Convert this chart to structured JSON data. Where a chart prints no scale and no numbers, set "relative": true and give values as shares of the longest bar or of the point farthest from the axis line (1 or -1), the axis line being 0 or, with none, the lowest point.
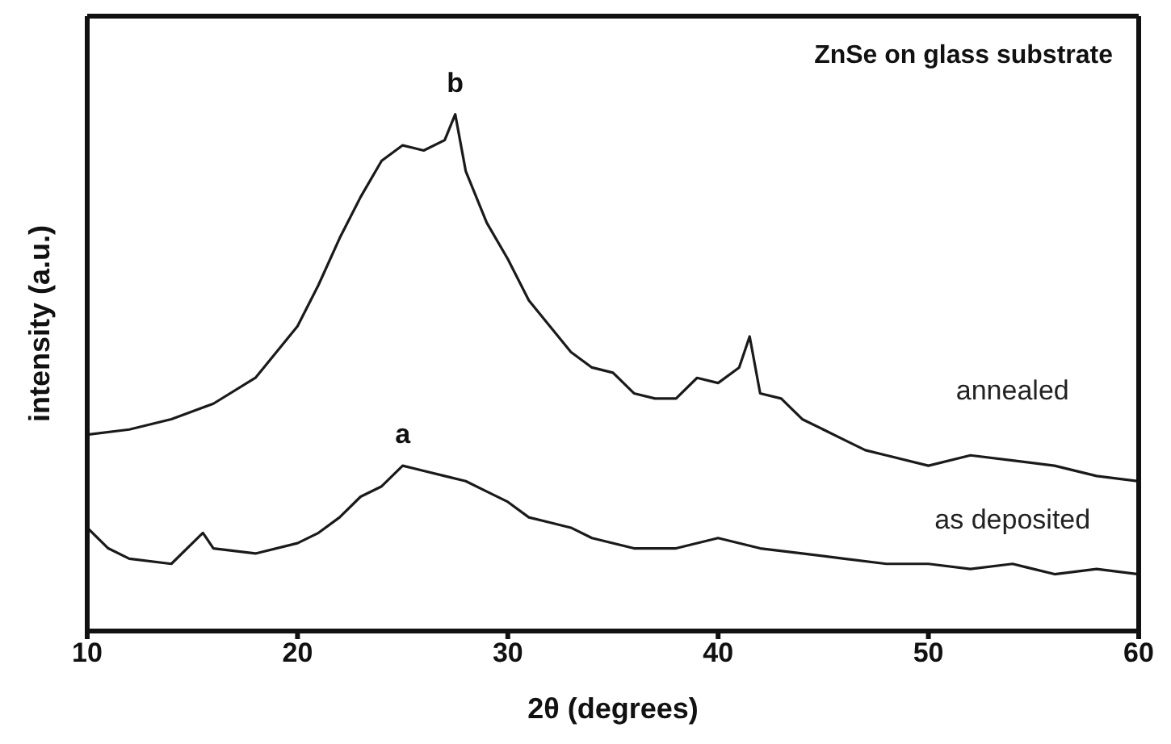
{
  "chart_data": {
    "type": "line",
    "relative": true,
    "xlabel": "2θ (degrees)",
    "ylabel": "intensity (a.u.)",
    "xlim": [
      10,
      60
    ],
    "xticks": [
      10,
      20,
      30,
      40,
      50,
      60
    ],
    "tick_labels": "x",
    "marker": "none",
    "line_style": "solid",
    "series": [
      {
        "name": "annealed",
        "color": "#1a1a1a",
        "x": [
          10,
          12,
          14,
          16,
          18,
          19,
          20,
          21,
          22,
          23,
          24,
          25,
          26,
          27,
          27.5,
          28,
          29,
          30,
          31,
          32,
          33,
          34,
          35,
          36,
          37,
          38,
          39,
          40,
          41,
          41.5,
          42,
          43,
          44,
          45,
          46,
          47,
          48,
          50,
          52,
          54,
          56,
          58,
          60
        ],
        "values": [
          0.38,
          0.39,
          0.41,
          0.44,
          0.49,
          0.54,
          0.59,
          0.67,
          0.76,
          0.84,
          0.91,
          0.94,
          0.93,
          0.95,
          1,
          0.89,
          0.79,
          0.72,
          0.64,
          0.59,
          0.54,
          0.51,
          0.5,
          0.46,
          0.45,
          0.45,
          0.49,
          0.48,
          0.51,
          0.57,
          0.46,
          0.45,
          0.41,
          0.39,
          0.37,
          0.35,
          0.34,
          0.32,
          0.34,
          0.33,
          0.32,
          0.3,
          0.29
        ]
      },
      {
        "name": "as deposited",
        "color": "#1a1a1a",
        "x": [
          10,
          11,
          12,
          14,
          15.5,
          16,
          18,
          20,
          21,
          22,
          23,
          24,
          25,
          26,
          27,
          28,
          29,
          30,
          31,
          32,
          33,
          34,
          36,
          38,
          40,
          42,
          44,
          46,
          48,
          50,
          52,
          54,
          56,
          58,
          60
        ],
        "values": [
          0.2,
          0.16,
          0.14,
          0.13,
          0.19,
          0.16,
          0.15,
          0.17,
          0.19,
          0.22,
          0.26,
          0.28,
          0.32,
          0.31,
          0.3,
          0.29,
          0.27,
          0.25,
          0.22,
          0.21,
          0.2,
          0.18,
          0.16,
          0.16,
          0.18,
          0.16,
          0.15,
          0.14,
          0.13,
          0.13,
          0.12,
          0.13,
          0.11,
          0.12,
          0.11
        ]
      }
    ],
    "annotations": [
      "ZnSe on glass substrate",
      {
        "text": "b",
        "x": 27.5,
        "y": 1
      },
      {
        "text": "a",
        "x": 25,
        "y": 0.32
      }
    ]
  }
}
